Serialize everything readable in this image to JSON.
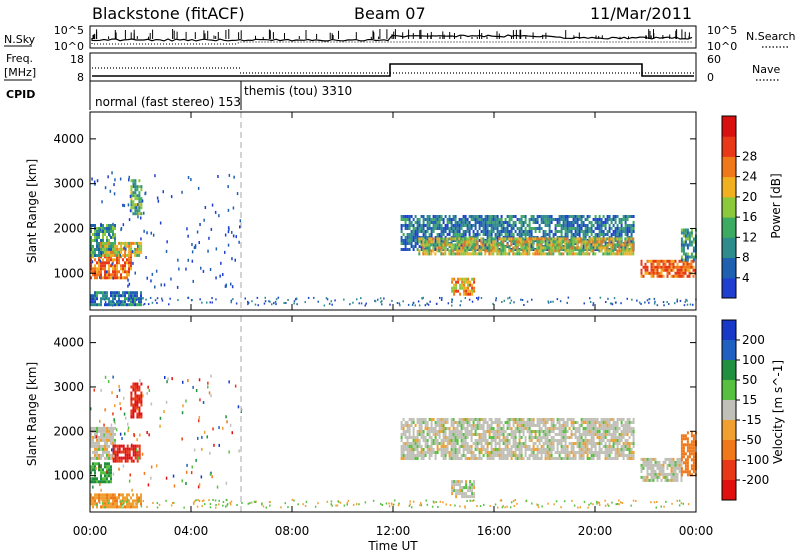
{
  "header": {
    "station": "Blackstone (fitACF)",
    "beam": "Beam 07",
    "date": "11/Mar/2011"
  },
  "nsky_panel": {
    "left_label": "N.Sky",
    "right_label": "N.Search",
    "left_ticks": [
      "10^5",
      "10^0"
    ],
    "right_ticks": [
      "10^5",
      "10^0"
    ]
  },
  "freq_panel": {
    "left_label_1": "Freq.",
    "left_label_2": "[MHz]",
    "right_label": "Nave",
    "left_ticks": [
      "18",
      "8"
    ],
    "right_ticks": [
      "60",
      "0"
    ]
  },
  "cpid": {
    "label": "CPID",
    "segments": [
      {
        "text": "normal (fast stereo) 153",
        "start_hour": 0
      },
      {
        "text": "themis (tou) 3310",
        "start_hour": 6
      }
    ]
  },
  "chart_data": [
    {
      "type": "heatmap",
      "title": "",
      "xlabel": "Time UT",
      "ylabel": "Slant Range [km]",
      "xlim": [
        0,
        24
      ],
      "ylim": [
        180,
        4600
      ],
      "x_ticks": [
        "00:00",
        "04:00",
        "08:00",
        "12:00",
        "16:00",
        "20:00",
        "00:00"
      ],
      "y_ticks": [
        1000,
        2000,
        3000,
        4000
      ],
      "colorbar": {
        "label": "Power [dB]",
        "ticks": [
          4,
          8,
          12,
          16,
          20,
          24,
          28
        ],
        "colors": [
          "#1f3fd0",
          "#2060b0",
          "#2f8c8c",
          "#3caa60",
          "#8cc83c",
          "#f0b020",
          "#f07818",
          "#e83818",
          "#d81010"
        ]
      },
      "echo_regions": [
        {
          "t0": 0.0,
          "t1": 1.6,
          "r0": 900,
          "r1": 1400,
          "power": 28
        },
        {
          "t0": 0.0,
          "t1": 1.0,
          "r0": 1400,
          "r1": 2100,
          "power": 12
        },
        {
          "t0": 0.4,
          "t1": 2.0,
          "r0": 1400,
          "r1": 1700,
          "power": 20
        },
        {
          "t0": 1.6,
          "t1": 2.0,
          "r0": 2300,
          "r1": 3100,
          "power": 16
        },
        {
          "t0": 0.0,
          "t1": 2.0,
          "r0": 280,
          "r1": 600,
          "power": 8
        },
        {
          "t0": 12.3,
          "t1": 21.5,
          "r0": 1500,
          "r1": 2300,
          "power": 8
        },
        {
          "t0": 13.0,
          "t1": 21.5,
          "r0": 1400,
          "r1": 1800,
          "power": 20
        },
        {
          "t0": 14.3,
          "t1": 15.2,
          "r0": 500,
          "r1": 900,
          "power": 24
        },
        {
          "t0": 21.8,
          "t1": 24.0,
          "r0": 900,
          "r1": 1300,
          "power": 28
        },
        {
          "t0": 23.4,
          "t1": 24.0,
          "r0": 1300,
          "r1": 2000,
          "power": 12
        }
      ]
    },
    {
      "type": "heatmap",
      "title": "",
      "xlabel": "Time UT",
      "ylabel": "Slant Range [km]",
      "xlim": [
        0,
        24
      ],
      "ylim": [
        180,
        4600
      ],
      "x_ticks": [
        "00:00",
        "04:00",
        "08:00",
        "12:00",
        "16:00",
        "20:00",
        "00:00"
      ],
      "y_ticks": [
        1000,
        2000,
        3000,
        4000
      ],
      "colorbar": {
        "label": "Velocity [m s^-1]",
        "ticks": [
          "200",
          "100",
          "50",
          "15",
          "-15",
          "-50",
          "-100",
          "-200"
        ],
        "colors": [
          "#1838c8",
          "#2060c0",
          "#209040",
          "#58c040",
          "#c0c0b8",
          "#f0a030",
          "#f07818",
          "#e83818",
          "#e01010"
        ]
      },
      "echo_regions": [
        {
          "t0": 0.0,
          "t1": 1.0,
          "r0": 1400,
          "r1": 2100,
          "velocity": 0
        },
        {
          "t0": 0.0,
          "t1": 0.8,
          "r0": 850,
          "r1": 1300,
          "velocity": 60
        },
        {
          "t0": 0.9,
          "t1": 2.0,
          "r0": 1300,
          "r1": 1700,
          "velocity": -200
        },
        {
          "t0": 1.6,
          "t1": 2.0,
          "r0": 2300,
          "r1": 3100,
          "velocity": -200
        },
        {
          "t0": 0.0,
          "t1": 2.0,
          "r0": 300,
          "r1": 600,
          "velocity": -40
        },
        {
          "t0": 12.3,
          "t1": 21.5,
          "r0": 1400,
          "r1": 2300,
          "velocity": 0
        },
        {
          "t0": 14.3,
          "t1": 15.2,
          "r0": 500,
          "r1": 900,
          "velocity": 0
        },
        {
          "t0": 21.8,
          "t1": 23.4,
          "r0": 900,
          "r1": 1400,
          "velocity": 0
        },
        {
          "t0": 23.4,
          "t1": 24.0,
          "r0": 1000,
          "r1": 2000,
          "velocity": -80
        }
      ]
    }
  ]
}
